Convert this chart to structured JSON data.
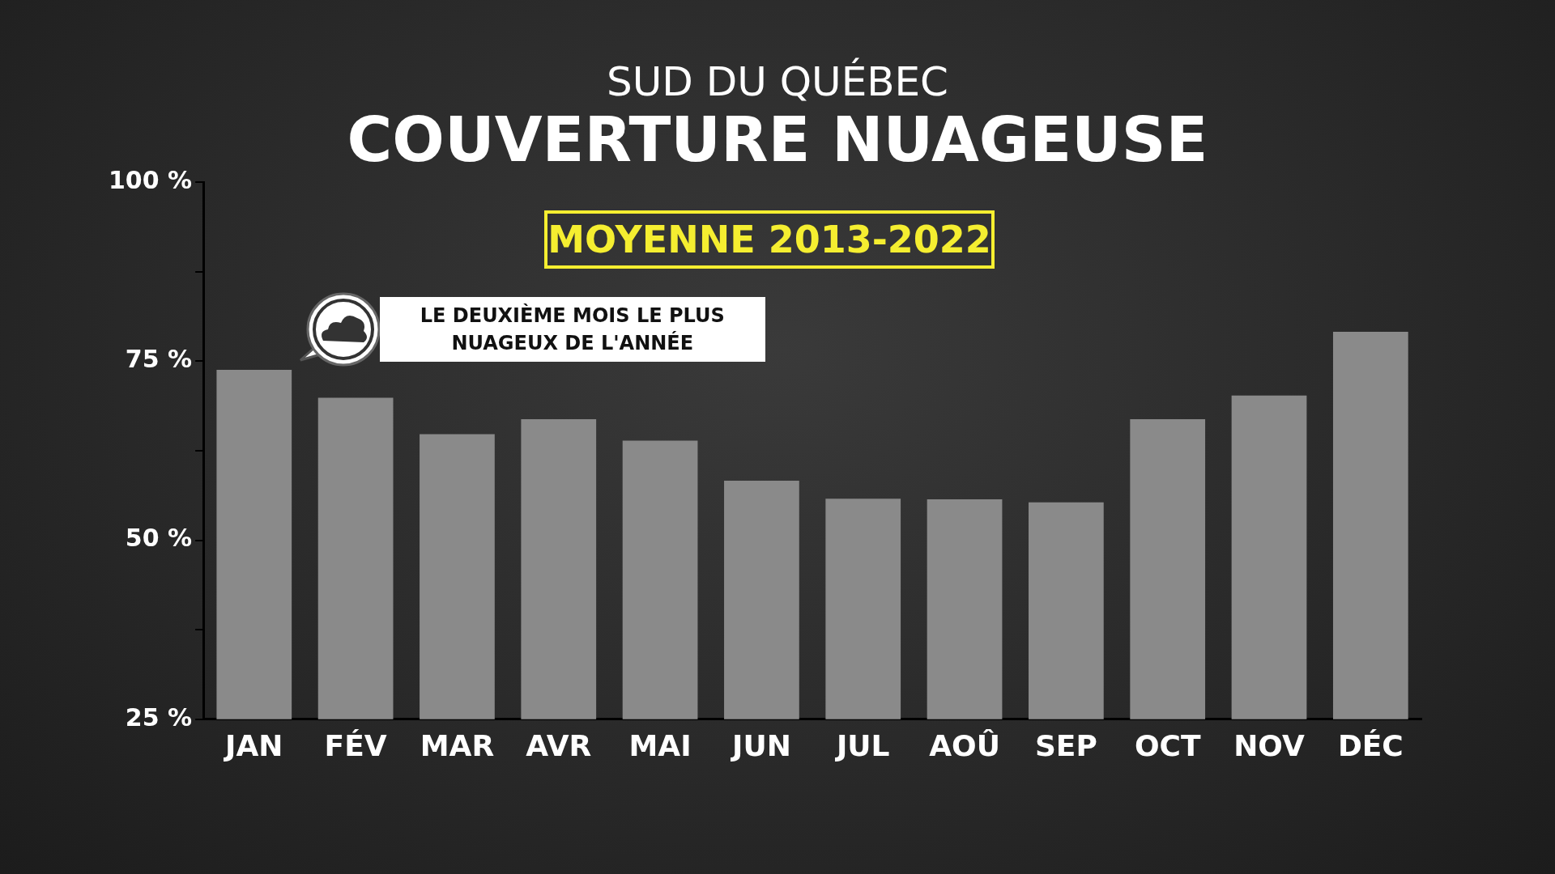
{
  "chart_data": {
    "type": "bar",
    "title": "COUVERTURE NUAGEUSE",
    "subtitle": "SUD DU QUÉBEC",
    "categories": [
      "JAN",
      "FÉV",
      "MAR",
      "AVR",
      "MAI",
      "JUN",
      "JUL",
      "AOÛ",
      "SEP",
      "OCT",
      "NOV",
      "DÉC"
    ],
    "values": [
      73.8,
      69.9,
      64.8,
      66.9,
      63.9,
      58.3,
      55.8,
      55.7,
      55.3,
      66.9,
      70.2,
      79.1
    ],
    "color": "#8a8a8a",
    "ylim": [
      25,
      100
    ],
    "yticks": [
      {
        "value": 25,
        "label": "25 %"
      },
      {
        "value": 37.5,
        "label": null
      },
      {
        "value": 50,
        "label": "50 %"
      },
      {
        "value": 62.5,
        "label": null
      },
      {
        "value": 75,
        "label": "75 %"
      },
      {
        "value": 87.5,
        "label": null
      },
      {
        "value": 100,
        "label": "100 %"
      }
    ],
    "grid": false,
    "legend": false,
    "annotations": [
      "MOYENNE 2013-2022",
      "LE DEUXIÈME MOIS LE PLUS NUAGEUX DE L'ANNÉE"
    ]
  }
}
